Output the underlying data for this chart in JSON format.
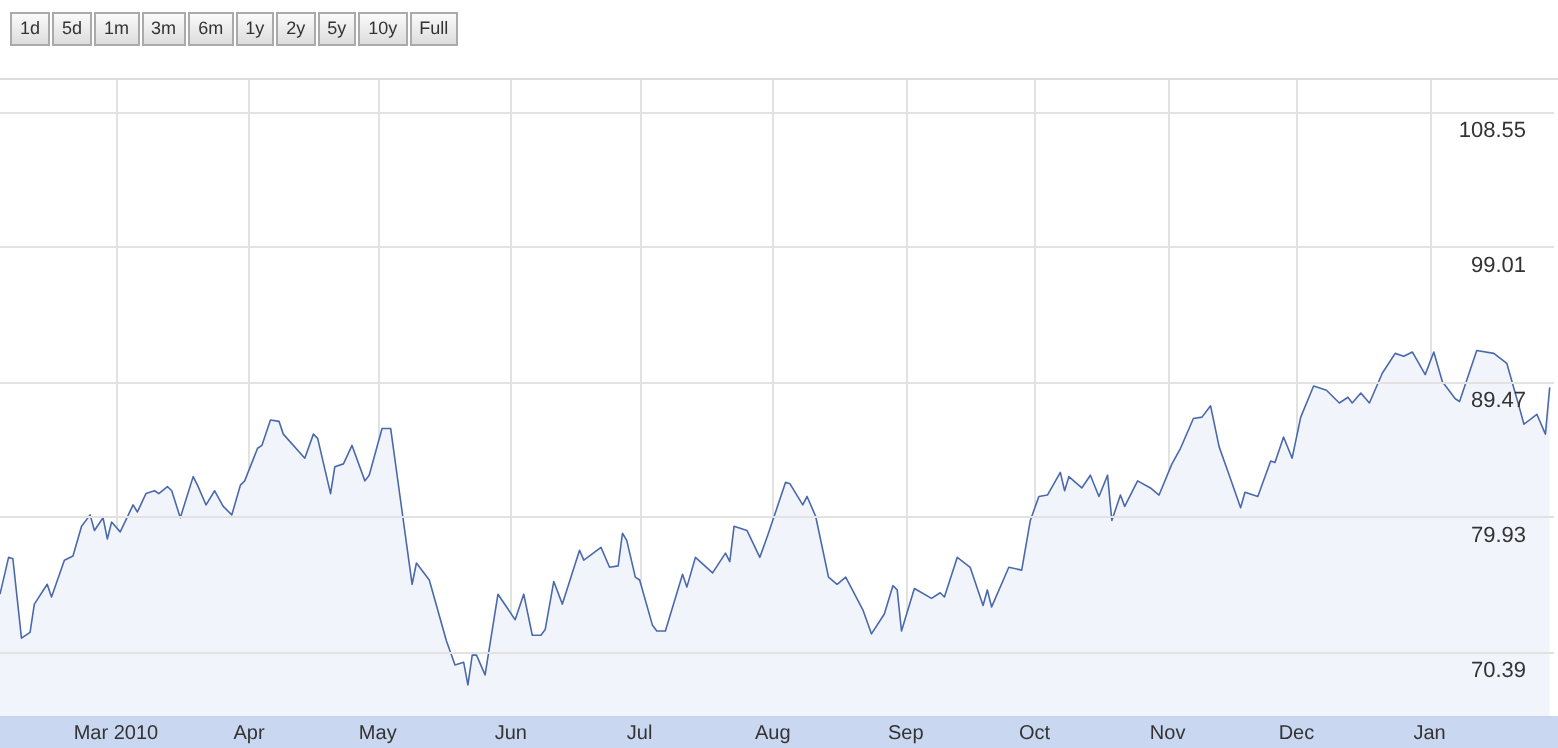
{
  "chart_data": {
    "type": "area",
    "annotations": [
      "1d",
      "5d",
      "1m",
      "3m",
      "6m",
      "1y",
      "2y",
      "5y",
      "10y",
      "Full"
    ],
    "x": [
      "2010-02-02",
      "2010-02-04",
      "2010-02-05",
      "2010-02-07",
      "2010-02-09",
      "2010-02-10",
      "2010-02-13",
      "2010-02-14",
      "2010-02-17",
      "2010-02-19",
      "2010-02-21",
      "2010-02-23",
      "2010-02-24",
      "2010-02-26",
      "2010-02-27",
      "2010-02-28",
      "2010-03-02",
      "2010-03-05",
      "2010-03-06",
      "2010-03-08",
      "2010-03-10",
      "2010-03-11",
      "2010-03-13",
      "2010-03-14",
      "2010-03-16",
      "2010-03-19",
      "2010-03-20",
      "2010-03-22",
      "2010-03-24",
      "2010-03-26",
      "2010-03-28",
      "2010-03-30",
      "2010-03-31",
      "2010-04-03",
      "2010-04-04",
      "2010-04-06",
      "2010-04-08",
      "2010-04-09",
      "2010-04-14",
      "2010-04-16",
      "2010-04-17",
      "2010-04-20",
      "2010-04-21",
      "2010-04-23",
      "2010-04-25",
      "2010-04-28",
      "2010-04-29",
      "2010-05-02",
      "2010-05-04",
      "2010-05-09",
      "2010-05-10",
      "2010-05-13",
      "2010-05-17",
      "2010-05-19",
      "2010-05-21",
      "2010-05-22",
      "2010-05-23",
      "2010-05-24",
      "2010-05-26",
      "2010-05-29",
      "2010-06-02",
      "2010-06-04",
      "2010-06-06",
      "2010-06-08",
      "2010-06-09",
      "2010-06-11",
      "2010-06-13",
      "2010-06-17",
      "2010-06-18",
      "2010-06-22",
      "2010-06-24",
      "2010-06-26",
      "2010-06-27",
      "2010-06-28",
      "2010-06-30",
      "2010-07-01",
      "2010-07-04",
      "2010-07-05",
      "2010-07-07",
      "2010-07-11",
      "2010-07-12",
      "2010-07-14",
      "2010-07-18",
      "2010-07-21",
      "2010-07-22",
      "2010-07-23",
      "2010-07-26",
      "2010-07-29",
      "2010-07-31",
      "2010-08-04",
      "2010-08-05",
      "2010-08-08",
      "2010-08-09",
      "2010-08-11",
      "2010-08-14",
      "2010-08-16",
      "2010-08-18",
      "2010-08-22",
      "2010-08-24",
      "2010-08-27",
      "2010-08-29",
      "2010-08-30",
      "2010-08-31",
      "2010-09-03",
      "2010-09-07",
      "2010-09-09",
      "2010-09-10",
      "2010-09-13",
      "2010-09-16",
      "2010-09-19",
      "2010-09-20",
      "2010-09-21",
      "2010-09-25",
      "2010-09-28",
      "2010-09-30",
      "2010-10-02",
      "2010-10-04",
      "2010-10-07",
      "2010-10-08",
      "2010-10-09",
      "2010-10-12",
      "2010-10-14",
      "2010-10-16",
      "2010-10-18",
      "2010-10-19",
      "2010-10-21",
      "2010-10-22",
      "2010-10-25",
      "2010-10-28",
      "2010-10-30",
      "2010-11-02",
      "2010-11-04",
      "2010-11-07",
      "2010-11-09",
      "2010-11-11",
      "2010-11-13",
      "2010-11-15",
      "2010-11-18",
      "2010-11-19",
      "2010-11-22",
      "2010-11-25",
      "2010-11-26",
      "2010-11-28",
      "2010-11-30",
      "2010-12-02",
      "2010-12-05",
      "2010-12-08",
      "2010-12-11",
      "2010-12-13",
      "2010-12-14",
      "2010-12-16",
      "2010-12-18",
      "2010-12-21",
      "2010-12-24",
      "2010-12-26",
      "2010-12-28",
      "2010-12-31",
      "2011-01-02",
      "2011-01-04",
      "2011-01-07",
      "2011-01-08",
      "2011-01-12",
      "2011-01-16",
      "2011-01-19",
      "2011-01-22",
      "2011-01-23",
      "2011-01-26",
      "2011-01-28",
      "2011-01-29"
    ],
    "values": [
      74.5,
      77.1,
      77.0,
      71.4,
      71.8,
      73.8,
      75.2,
      74.3,
      76.9,
      77.2,
      79.3,
      80.1,
      79.0,
      79.9,
      78.4,
      79.6,
      78.9,
      80.8,
      80.3,
      81.6,
      81.8,
      81.6,
      82.1,
      81.8,
      79.9,
      82.8,
      82.2,
      80.8,
      81.8,
      80.7,
      80.1,
      82.2,
      82.5,
      84.8,
      85.0,
      86.8,
      86.7,
      85.8,
      84.1,
      85.8,
      85.5,
      81.6,
      83.5,
      83.7,
      85.0,
      82.5,
      82.9,
      86.2,
      86.2,
      75.2,
      76.7,
      75.5,
      71.2,
      69.5,
      69.7,
      68.1,
      70.2,
      70.2,
      68.8,
      74.5,
      72.7,
      74.5,
      71.6,
      71.6,
      72.0,
      75.4,
      73.8,
      77.6,
      76.9,
      77.8,
      76.4,
      76.5,
      78.8,
      78.3,
      75.7,
      75.5,
      72.3,
      71.9,
      71.9,
      75.9,
      75.0,
      77.1,
      76.0,
      77.4,
      76.8,
      79.3,
      79.0,
      77.1,
      78.8,
      82.4,
      82.3,
      80.8,
      81.4,
      80.0,
      75.7,
      75.2,
      75.7,
      73.4,
      71.7,
      73.1,
      75.1,
      74.8,
      71.9,
      74.9,
      74.2,
      74.6,
      74.3,
      77.1,
      76.4,
      73.7,
      74.8,
      73.6,
      76.4,
      76.2,
      79.7,
      81.4,
      81.5,
      83.1,
      81.8,
      82.8,
      82.0,
      82.9,
      81.4,
      82.9,
      79.7,
      81.5,
      80.7,
      82.5,
      82.0,
      81.5,
      83.7,
      84.8,
      86.9,
      87.0,
      87.8,
      84.9,
      83.2,
      80.6,
      81.7,
      81.4,
      83.9,
      83.8,
      85.6,
      84.1,
      87.0,
      89.2,
      88.9,
      88.0,
      88.4,
      88.0,
      88.7,
      88.0,
      90.1,
      91.5,
      91.3,
      91.6,
      90.0,
      91.6,
      89.5,
      88.3,
      88.1,
      91.7,
      91.5,
      90.8,
      87.6,
      86.5,
      87.2,
      85.8,
      89.1
    ],
    "color": "#4a69ad",
    "xlim": [
      "2010-02-02",
      "2011-01-30"
    ],
    "xticks": [
      {
        "value": "2010-03-01",
        "label": "Mar 2010"
      },
      {
        "value": "2010-04-01",
        "label": "Apr"
      },
      {
        "value": "2010-05-01",
        "label": "May"
      },
      {
        "value": "2010-06-01",
        "label": "Jun"
      },
      {
        "value": "2010-07-01",
        "label": "Jul"
      },
      {
        "value": "2010-08-01",
        "label": "Aug"
      },
      {
        "value": "2010-09-01",
        "label": "Sep"
      },
      {
        "value": "2010-10-01",
        "label": "Oct"
      },
      {
        "value": "2010-11-01",
        "label": "Nov"
      },
      {
        "value": "2010-12-01",
        "label": "Dec"
      },
      {
        "value": "2011-01-01",
        "label": "Jan"
      }
    ],
    "ylim": [
      65.9,
      110.8
    ],
    "yticks": [
      70.39,
      79.93,
      89.47,
      99.01,
      108.55
    ],
    "grid": true
  }
}
